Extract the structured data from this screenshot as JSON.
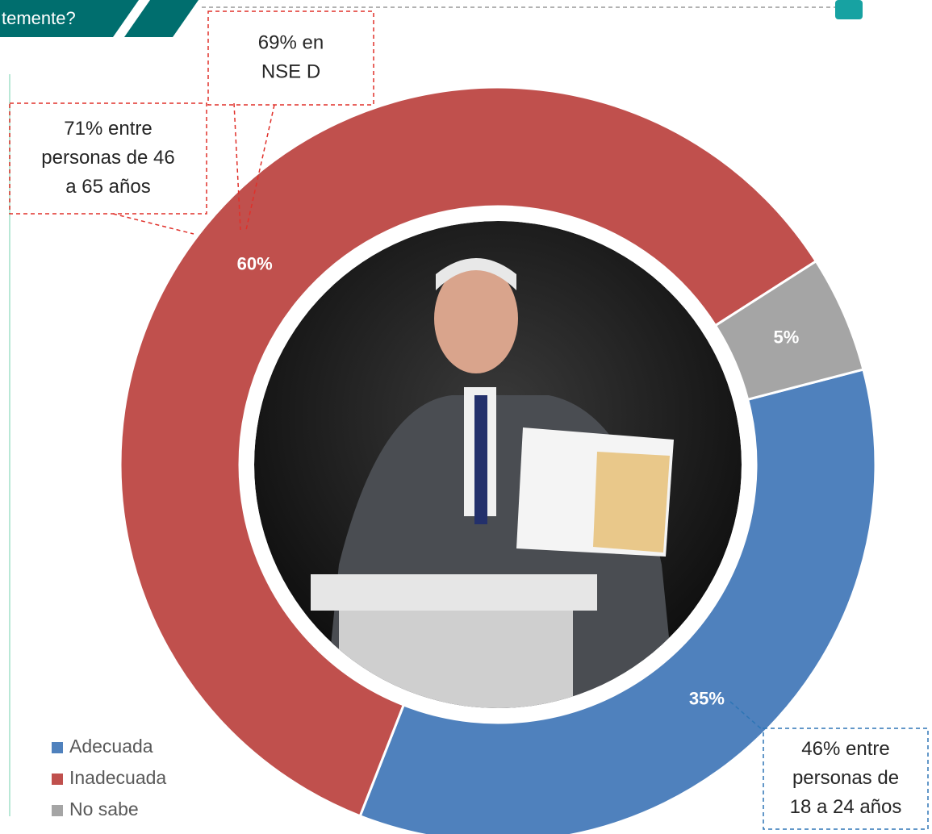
{
  "chart_data": {
    "type": "donut",
    "title": "temente?",
    "categories": [
      "Adecuada",
      "Inadecuada",
      "No sabe"
    ],
    "values": [
      35,
      60,
      5
    ],
    "value_labels": [
      "35%",
      "60%",
      "5%"
    ],
    "colors": [
      "#4f81bd",
      "#c0504d",
      "#a5a5a5"
    ],
    "legend": "bottom-left",
    "annotations": [
      {
        "lines": [
          "69% en",
          "NSE D"
        ],
        "color": "#e0302a"
      },
      {
        "lines": [
          "71% entre",
          "personas de 46",
          "a 65 años"
        ],
        "color": "#e0302a"
      },
      {
        "lines": [
          "46% entre",
          "personas de",
          "18 a 24 años"
        ],
        "color": "#2e75b6"
      }
    ]
  }
}
